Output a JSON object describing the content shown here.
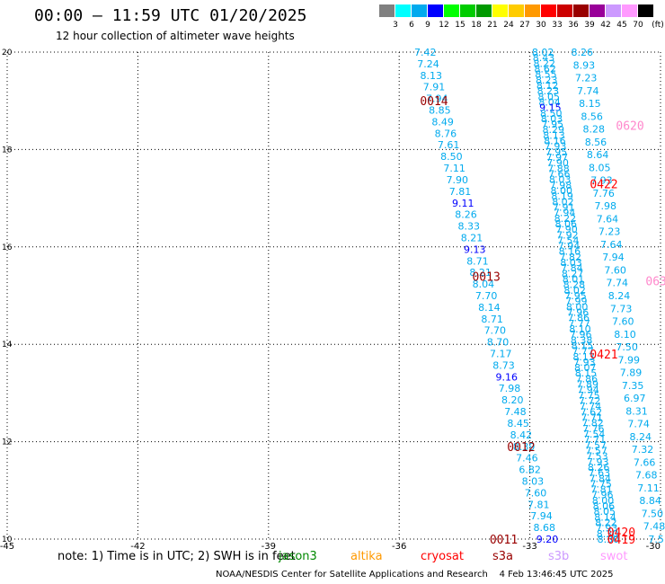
{
  "header": {
    "title": "00:00 – 11:59 UTC 01/20/2025",
    "subtitle": "12 hour collection of altimeter wave heights"
  },
  "legend": {
    "unit": "(ft)",
    "colors": [
      "#808080",
      "#00ffff",
      "#00aaee",
      "#0000ff",
      "#00ff00",
      "#00cc00",
      "#009900",
      "#ffff00",
      "#ffcc00",
      "#ff9900",
      "#ff0000",
      "#cc0000",
      "#990000",
      "#990099",
      "#cc99ff",
      "#ff99ff",
      "#000000"
    ],
    "labels": [
      "3",
      "6",
      "9",
      "12",
      "15",
      "18",
      "21",
      "24",
      "27",
      "30",
      "33",
      "36",
      "39",
      "42",
      "45",
      "70"
    ]
  },
  "chart_data": {
    "type": "scatter",
    "title": "00:00 – 11:59 UTC 01/20/2025",
    "xlabel": "",
    "ylabel": "",
    "xlim": [
      -45,
      -30
    ],
    "ylim": [
      10,
      20
    ],
    "x_ticks": [
      "-45",
      "-42",
      "-39",
      "-36",
      "-33",
      "-30"
    ],
    "y_ticks": [
      "10",
      "12",
      "14",
      "16",
      "18",
      "20"
    ],
    "grid": true,
    "tracks": [
      {
        "x_start": -35.4,
        "y_start": 20,
        "x_end": -32.6,
        "y_end": 10,
        "values": [
          "7.42",
          "7.24",
          "8.13",
          "7.91",
          "7.94",
          "8.85",
          "8.49",
          "8.76",
          "7.61",
          "8.50",
          "7.11",
          "7.90",
          "7.81",
          "9.11",
          "8.26",
          "8.33",
          "8.21",
          "9.13",
          "8.71",
          "8.21",
          "8.04",
          "7.70",
          "8.14",
          "8.71",
          "7.70",
          "8.70",
          "7.17",
          "8.73",
          "9.16",
          "7.98",
          "8.20",
          "7.48",
          "8.45",
          "8.42",
          "8.39",
          "7.46",
          "6.82",
          "8.03",
          "7.60",
          "7.81",
          "7.94",
          "8.68",
          "9.20"
        ]
      },
      {
        "x_start": -32.7,
        "y_start": 20,
        "x_end": -31.2,
        "y_end": 10,
        "values": [
          "8.02",
          "8.43",
          "8.22",
          "8.62",
          "8.55",
          "8.23",
          "8.12",
          "8.23",
          "8.05",
          "8.04",
          "9.15",
          "8.50",
          "8.03",
          "7.95",
          "8.29",
          "8.13",
          "8.16",
          "7.93",
          "7.95",
          "7.97",
          "7.90",
          "7.88",
          "7.66",
          "8.03",
          "7.98",
          "8.00",
          "8.19",
          "8.02",
          "7.91",
          "7.94",
          "8.22",
          "8.06",
          "7.90",
          "7.92",
          "7.54",
          "7.94",
          "8.16",
          "7.82",
          "8.03",
          "7.84",
          "8.27",
          "8.01",
          "8.28",
          "8.02",
          "7.95",
          "7.99",
          "8.00",
          "7.96",
          "7.86",
          "7.77",
          "8.10",
          "7.96",
          "8.38",
          "8.15",
          "7.77",
          "8.13",
          "7.93",
          "8.07",
          "8.15",
          "7.86",
          "7.89",
          "7.94",
          "7.75",
          "7.72",
          "7.74",
          "7.62",
          "7.71",
          "7.82",
          "7.76",
          "7.54",
          "7.71",
          "7.57",
          "7.57",
          "7.53",
          "7.93",
          "8.26",
          "7.63",
          "7.84",
          "7.75",
          "7.81",
          "7.96",
          "8.00",
          "8.06",
          "8.05",
          "8.14",
          "8.22",
          "7.93",
          "8.30",
          "8.30"
        ]
      },
      {
        "x_start": -31.8,
        "y_start": 20,
        "x_end": -30.1,
        "y_end": 10,
        "values": [
          "8.26",
          "8.93",
          "7.23",
          "7.74",
          "8.15",
          "8.56",
          "8.28",
          "8.56",
          "8.64",
          "8.05",
          "7.93",
          "7.76",
          "7.98",
          "7.64",
          "7.23",
          "7.64",
          "7.94",
          "7.60",
          "7.74",
          "8.24",
          "7.73",
          "7.60",
          "8.10",
          "7.50",
          "7.99",
          "7.89",
          "7.35",
          "6.97",
          "8.31",
          "7.74",
          "8.24",
          "7.32",
          "7.66",
          "7.68",
          "7.11",
          "8.84",
          "7.50",
          "7.48",
          "7.5"
        ]
      }
    ],
    "pass_labels": [
      {
        "text": "0014",
        "x": -35.2,
        "y": 19.0,
        "color": "#990000"
      },
      {
        "text": "0013",
        "x": -34.0,
        "y": 15.4,
        "color": "#990000"
      },
      {
        "text": "0012",
        "x": -33.2,
        "y": 11.9,
        "color": "#990000"
      },
      {
        "text": "0011",
        "x": -33.6,
        "y": 10.0,
        "color": "#990000"
      },
      {
        "text": "0620",
        "x": -30.7,
        "y": 18.5,
        "color": "#ff88cc"
      },
      {
        "text": "0422",
        "x": -31.3,
        "y": 17.3,
        "color": "#ff0000"
      },
      {
        "text": "0421",
        "x": -31.3,
        "y": 13.8,
        "color": "#ff0000"
      },
      {
        "text": "0420",
        "x": -30.9,
        "y": 10.15,
        "color": "#ff0000"
      },
      {
        "text": "0419",
        "x": -30.9,
        "y": 10.0,
        "color": "#ff0000"
      },
      {
        "text": "063",
        "x": -30.1,
        "y": 15.3,
        "color": "#ff88cc"
      }
    ]
  },
  "footer": {
    "note": "note: 1) Time is in UTC; 2) SWH is in feet",
    "satellites": [
      {
        "name": "jason3",
        "color": "#008800",
        "left": 310
      },
      {
        "name": "altika",
        "color": "#ff9900",
        "left": 390
      },
      {
        "name": "cryosat",
        "color": "#ff0000",
        "left": 468
      },
      {
        "name": "s3a",
        "color": "#990000",
        "left": 548
      },
      {
        "name": "s3b",
        "color": "#cc99ff",
        "left": 610
      },
      {
        "name": "swot",
        "color": "#ff99ff",
        "left": 668
      }
    ],
    "credit": "NOAA/NESDIS Center for Satellite Applications and Research    4 Feb 13:46:45 UTC 2025"
  }
}
